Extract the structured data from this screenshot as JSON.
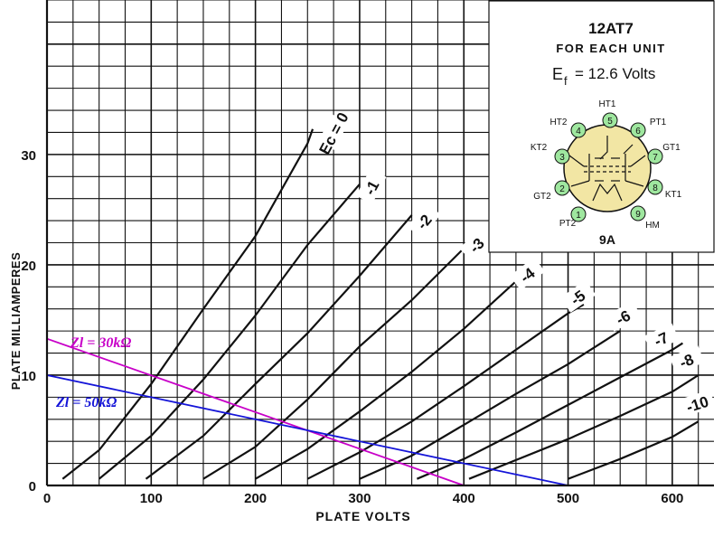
{
  "chart_data": {
    "type": "line",
    "xlabel": "PLATE VOLTS",
    "ylabel": "PLATE MILLIAMPERES",
    "xlim": [
      0,
      640
    ],
    "ylim": [
      0,
      44
    ],
    "xticks": [
      "0",
      "100",
      "200",
      "300",
      "400",
      "500",
      "600"
    ],
    "xtick_values": [
      0,
      100,
      200,
      300,
      400,
      500,
      600
    ],
    "yticks": [
      "0",
      "10",
      "20",
      "30"
    ],
    "ytick_values": [
      0,
      10,
      20,
      30
    ],
    "grid": true,
    "series": [
      {
        "name": "Ec = 0",
        "label": "Ec = 0",
        "points": [
          [
            15,
            0.6
          ],
          [
            50,
            3.2
          ],
          [
            100,
            9.2
          ],
          [
            150,
            16
          ],
          [
            200,
            22.6
          ],
          [
            250,
            31
          ],
          [
            255,
            32.3
          ]
        ]
      },
      {
        "name": "-1",
        "label": "-1",
        "points": [
          [
            50,
            0.6
          ],
          [
            100,
            4.5
          ],
          [
            150,
            9.6
          ],
          [
            200,
            15.4
          ],
          [
            250,
            21.8
          ],
          [
            300,
            27.3
          ]
        ]
      },
      {
        "name": "-2",
        "label": "-2",
        "points": [
          [
            95,
            0.6
          ],
          [
            150,
            4.5
          ],
          [
            200,
            9.2
          ],
          [
            250,
            13.8
          ],
          [
            300,
            19
          ],
          [
            350,
            24.5
          ]
        ]
      },
      {
        "name": "-3",
        "label": "-3",
        "points": [
          [
            150,
            0.6
          ],
          [
            200,
            3.5
          ],
          [
            250,
            7.8
          ],
          [
            300,
            12.6
          ],
          [
            350,
            16.8
          ],
          [
            400,
            21.5
          ]
        ]
      },
      {
        "name": "-4",
        "label": "-4",
        "points": [
          [
            200,
            0.6
          ],
          [
            250,
            3.3
          ],
          [
            300,
            6.7
          ],
          [
            350,
            10.3
          ],
          [
            400,
            14.2
          ],
          [
            450,
            18.5
          ],
          [
            465,
            19.6
          ]
        ]
      },
      {
        "name": "-5",
        "label": "-5",
        "points": [
          [
            250,
            0.6
          ],
          [
            300,
            3
          ],
          [
            350,
            5.8
          ],
          [
            400,
            9
          ],
          [
            450,
            12.3
          ],
          [
            500,
            15.6
          ],
          [
            515,
            16.4
          ]
        ]
      },
      {
        "name": "-6",
        "label": "-6",
        "points": [
          [
            300,
            0.6
          ],
          [
            350,
            2.7
          ],
          [
            400,
            5.5
          ],
          [
            450,
            8.3
          ],
          [
            500,
            11
          ],
          [
            550,
            14
          ]
        ]
      },
      {
        "name": "-7",
        "label": "-7",
        "points": [
          [
            355,
            0.6
          ],
          [
            400,
            2.4
          ],
          [
            450,
            4.8
          ],
          [
            500,
            7.3
          ],
          [
            550,
            9.8
          ],
          [
            600,
            12.3
          ],
          [
            610,
            12.9
          ]
        ]
      },
      {
        "name": "-8",
        "label": "-8",
        "points": [
          [
            405,
            0.6
          ],
          [
            450,
            2.3
          ],
          [
            500,
            4.2
          ],
          [
            550,
            6.3
          ],
          [
            600,
            8.5
          ],
          [
            625,
            10
          ]
        ]
      },
      {
        "name": "-10",
        "label": "-10",
        "points": [
          [
            500,
            0.6
          ],
          [
            550,
            2.4
          ],
          [
            600,
            4.4
          ],
          [
            625,
            5.8
          ]
        ]
      }
    ],
    "load_lines": [
      {
        "label": "Zl = 30kΩ",
        "color": "#c800c8",
        "points": [
          [
            0,
            13.3
          ],
          [
            400,
            0
          ]
        ]
      },
      {
        "name": "Zl = 50kΩ",
        "label": "Zl = 50kΩ",
        "color": "#1414d8",
        "points": [
          [
            0,
            10
          ],
          [
            500,
            0
          ]
        ]
      }
    ]
  },
  "inset": {
    "tube": "12AT7",
    "subtitle": "FOR EACH UNIT",
    "ef_symbol": "E",
    "ef_sub": "f",
    "ef_value": "= 12.6 Volts",
    "base": "9A",
    "pins": [
      "1",
      "2",
      "3",
      "4",
      "5",
      "6",
      "7",
      "8",
      "9"
    ],
    "pin_labels": [
      "PT2",
      "GT2",
      "KT2",
      "HT2",
      "HT1",
      "PT1",
      "GT1",
      "KT1",
      "HM"
    ],
    "pin_fill": "#9fe79f",
    "envelope_fill": "#f2e6a4"
  }
}
